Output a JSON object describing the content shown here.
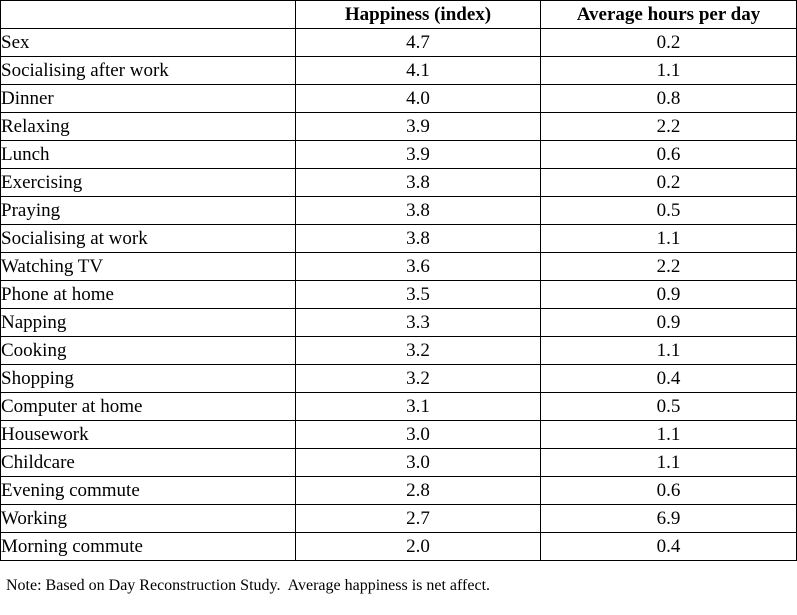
{
  "note": "Note: Based on Day Reconstruction Study.  Average happiness is net affect.",
  "chart_data": {
    "type": "table",
    "columns": [
      "",
      "Happiness (index)",
      "Average hours per day"
    ],
    "rows": [
      [
        "Sex",
        "4.7",
        "0.2"
      ],
      [
        "Socialising after work",
        "4.1",
        "1.1"
      ],
      [
        "Dinner",
        "4.0",
        "0.8"
      ],
      [
        "Relaxing",
        "3.9",
        "2.2"
      ],
      [
        "Lunch",
        "3.9",
        "0.6"
      ],
      [
        "Exercising",
        "3.8",
        "0.2"
      ],
      [
        "Praying",
        "3.8",
        "0.5"
      ],
      [
        "Socialising at work",
        "3.8",
        "1.1"
      ],
      [
        "Watching TV",
        "3.6",
        "2.2"
      ],
      [
        "Phone at home",
        "3.5",
        "0.9"
      ],
      [
        "Napping",
        "3.3",
        "0.9"
      ],
      [
        "Cooking",
        "3.2",
        "1.1"
      ],
      [
        "Shopping",
        "3.2",
        "0.4"
      ],
      [
        "Computer at home",
        "3.1",
        "0.5"
      ],
      [
        "Housework",
        "3.0",
        "1.1"
      ],
      [
        "Childcare",
        "3.0",
        "1.1"
      ],
      [
        "Evening commute",
        "2.8",
        "0.6"
      ],
      [
        "Working",
        "2.7",
        "6.9"
      ],
      [
        "Morning commute",
        "2.0",
        "0.4"
      ]
    ]
  }
}
